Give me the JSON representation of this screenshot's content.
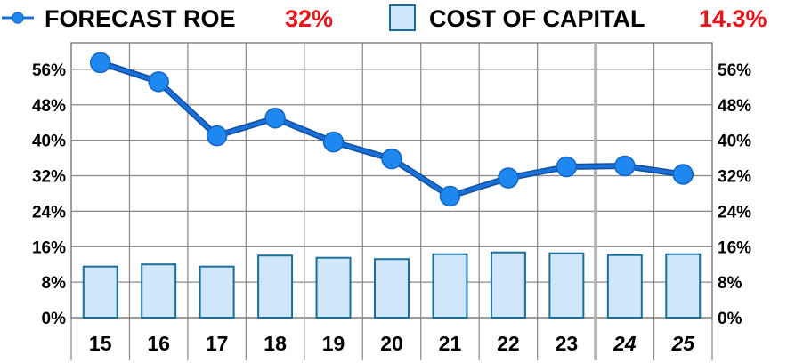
{
  "legend": {
    "line_label": "FORECAST ROE",
    "line_value": "32%",
    "bar_label": "COST OF CAPITAL",
    "bar_value": "14.3%"
  },
  "colors": {
    "line": "#1a6fd8",
    "marker": "#1e88f0",
    "bar_fill": "#cfe6fb",
    "bar_stroke": "#1a6f9a",
    "value_red": "#e8141c",
    "grid": "#888888"
  },
  "chart_data": {
    "type": "line+bar",
    "categories": [
      "15",
      "16",
      "17",
      "18",
      "19",
      "20",
      "21",
      "22",
      "23",
      "24",
      "25"
    ],
    "forecast_start_index": 9,
    "series": [
      {
        "name": "FORECAST ROE",
        "kind": "line",
        "values": [
          57.5,
          53.2,
          41.0,
          45.0,
          39.6,
          35.8,
          27.4,
          31.5,
          34.0,
          34.2,
          32.3
        ]
      },
      {
        "name": "COST OF CAPITAL",
        "kind": "bar",
        "values": [
          11.5,
          12.0,
          11.5,
          14.0,
          13.5,
          13.2,
          14.3,
          14.7,
          14.5,
          14.1,
          14.3
        ]
      }
    ],
    "ylim": [
      0,
      62
    ],
    "yticks": [
      "0%",
      "8%",
      "16%",
      "24%",
      "32%",
      "40%",
      "48%",
      "56%"
    ],
    "ytick_values": [
      0,
      8,
      16,
      24,
      32,
      40,
      48,
      56
    ],
    "grid": true,
    "legend_position": "top"
  }
}
